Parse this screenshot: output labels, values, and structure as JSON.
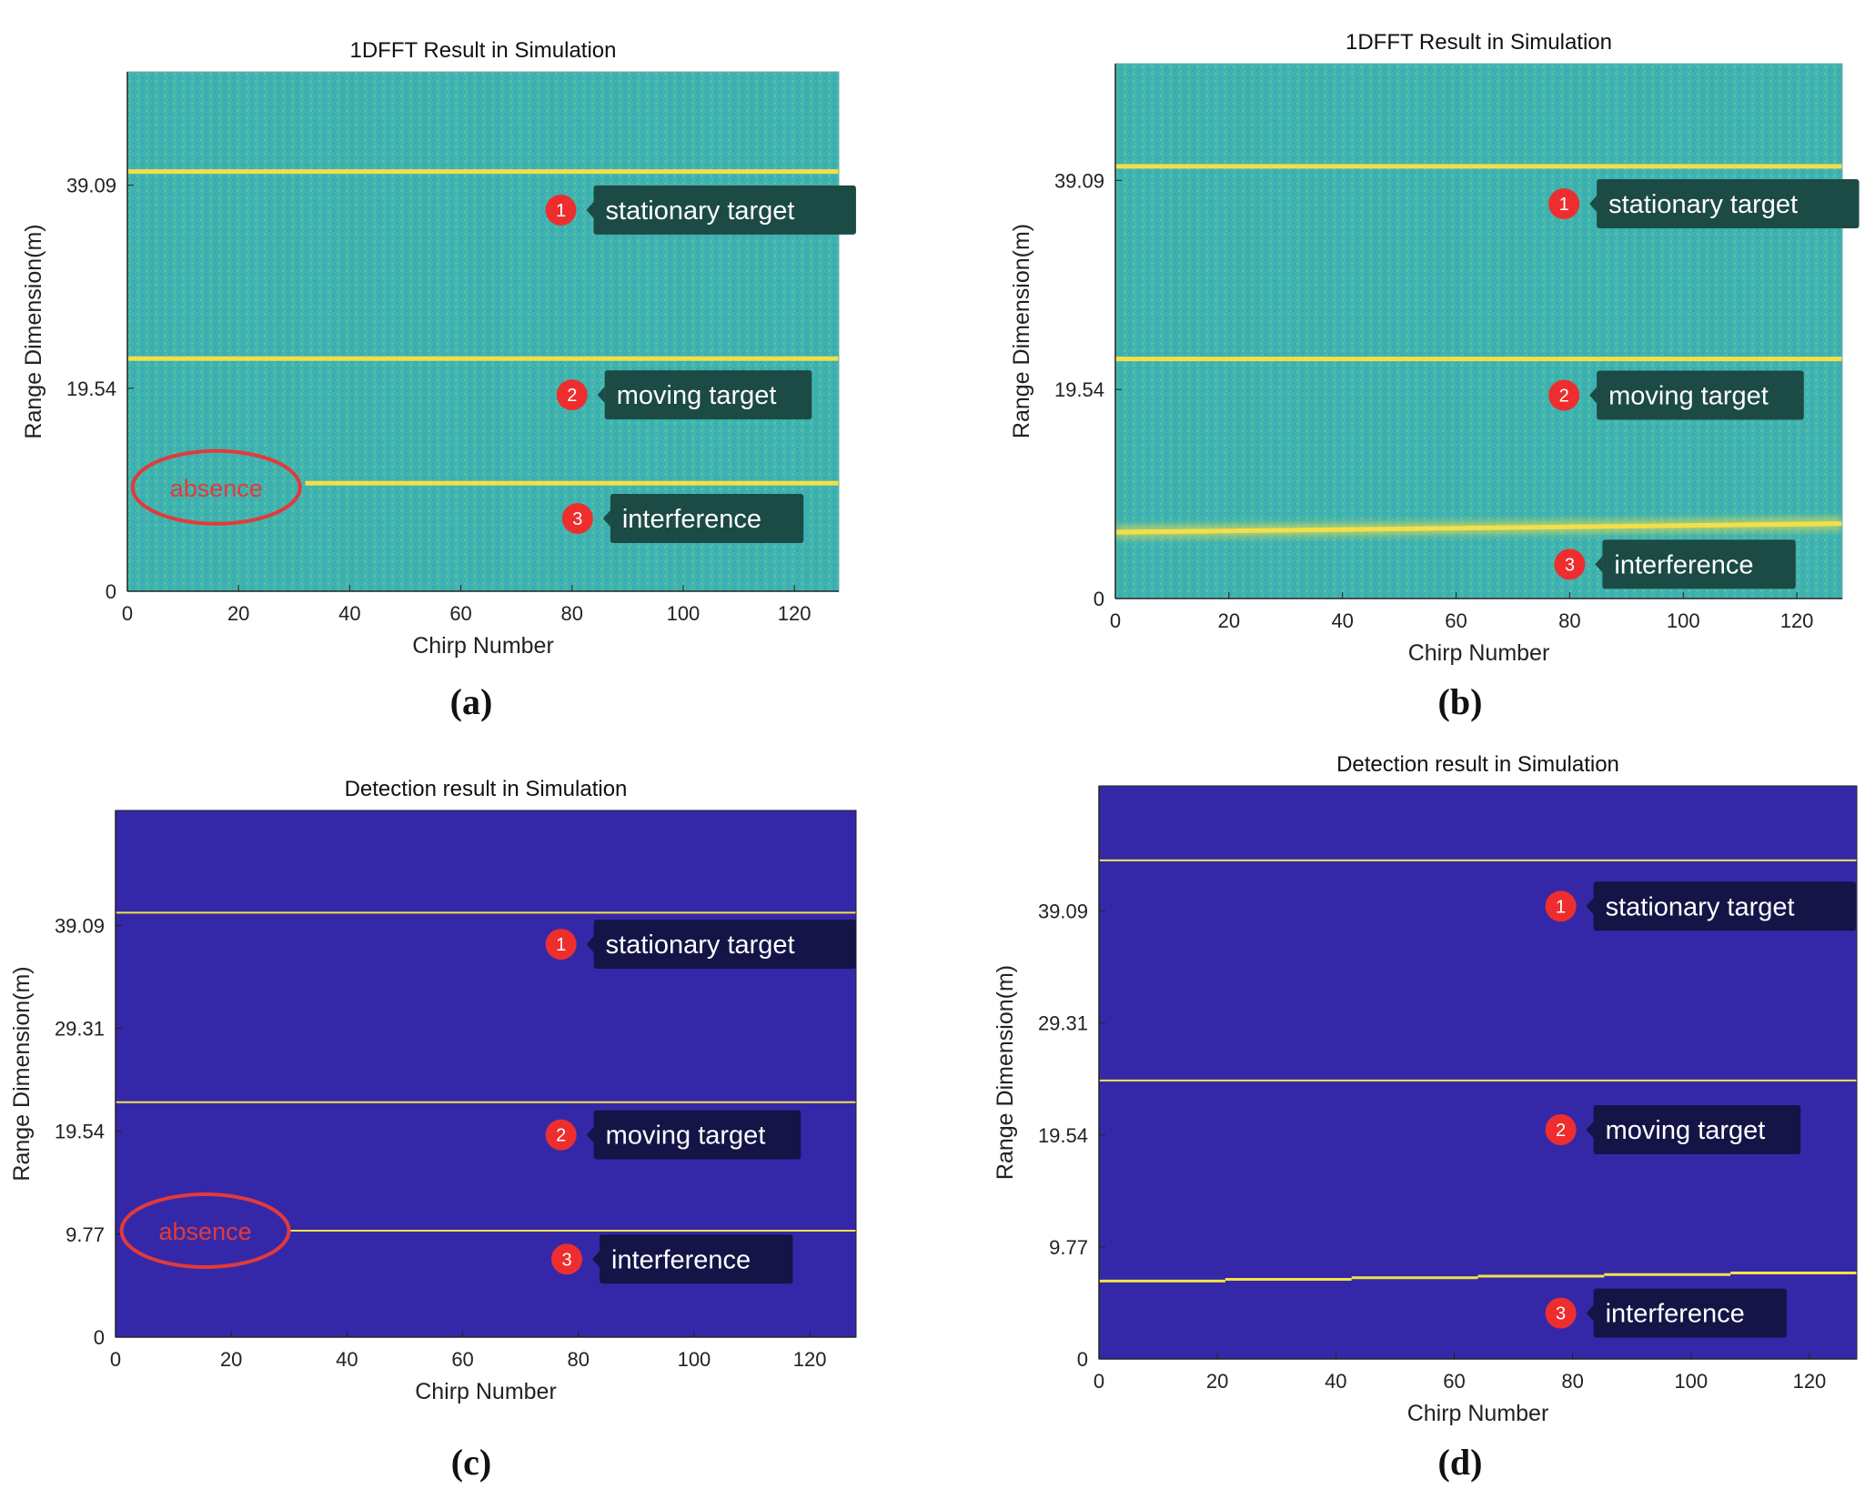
{
  "figure": {
    "captions": [
      "(a)",
      "(b)",
      "(c)",
      "(d)"
    ]
  },
  "chart_data": [
    {
      "id": "a",
      "type": "heatmap",
      "title": "1DFFT Result in Simulation",
      "xlabel": "Chirp Number",
      "ylabel": "Range Dimension(m)",
      "xlim": [
        0,
        128
      ],
      "ylim": [
        0,
        50
      ],
      "xticks": [
        0,
        20,
        40,
        60,
        80,
        100,
        120
      ],
      "yticks": [
        0,
        19.54,
        39.09
      ],
      "ytick_labels": [
        "0",
        "19.54",
        "39.09"
      ],
      "colors": {
        "background": "#3fb3b0",
        "line": "#f3df4a",
        "noise_a": "#6cc898",
        "noise_b": "#2d9fc0"
      },
      "lines": [
        {
          "label": "stationary target",
          "number": "1",
          "y": [
            40.4,
            40.4
          ],
          "x": [
            0,
            128
          ]
        },
        {
          "label": "moving target",
          "number": "2",
          "y": [
            22.4,
            22.4
          ],
          "x": [
            0,
            128
          ]
        },
        {
          "label": "interference",
          "number": "3",
          "y": [
            10.4,
            10.4
          ],
          "x": [
            32,
            128
          ]
        }
      ],
      "annotations": [
        {
          "label": "stationary target",
          "number": "1",
          "at": [
            78,
            36.7
          ]
        },
        {
          "label": "moving target",
          "number": "2",
          "at": [
            80,
            18.9
          ]
        },
        {
          "label": "interference",
          "number": "3",
          "at": [
            81,
            7.0
          ]
        }
      ],
      "absence": {
        "label": "absence",
        "center": [
          16,
          10
        ]
      }
    },
    {
      "id": "b",
      "type": "heatmap",
      "title": "1DFFT Result in Simulation",
      "xlabel": "Chirp Number",
      "ylabel": "Range Dimension(m)",
      "xlim": [
        0,
        128
      ],
      "ylim": [
        0,
        50
      ],
      "xticks": [
        0,
        20,
        40,
        60,
        80,
        100,
        120
      ],
      "yticks": [
        0,
        19.54,
        39.09
      ],
      "ytick_labels": [
        "0",
        "19.54",
        "39.09"
      ],
      "colors": {
        "background": "#3fb3b0",
        "line": "#f3df4a",
        "noise_a": "#6cc898",
        "noise_b": "#2d9fc0"
      },
      "lines": [
        {
          "label": "stationary target",
          "number": "1",
          "y": [
            40.4,
            40.4
          ],
          "x": [
            0,
            128
          ]
        },
        {
          "label": "moving target",
          "number": "2",
          "y": [
            22.4,
            22.4
          ],
          "x": [
            0,
            128
          ]
        },
        {
          "label": "interference",
          "number": "3",
          "y": [
            6.2,
            7.0
          ],
          "x": [
            0,
            128
          ]
        }
      ],
      "annotations": [
        {
          "label": "stationary target",
          "number": "1",
          "at": [
            79,
            36.9
          ]
        },
        {
          "label": "moving target",
          "number": "2",
          "at": [
            79,
            19.0
          ]
        },
        {
          "label": "interference",
          "number": "3",
          "at": [
            80,
            3.2
          ]
        }
      ],
      "absence": null
    },
    {
      "id": "c",
      "type": "heatmap",
      "title": "Detection result in Simulation",
      "xlabel": "Chirp Number",
      "ylabel": "Range Dimension(m)",
      "xlim": [
        0,
        128
      ],
      "ylim": [
        0,
        50
      ],
      "xticks": [
        0,
        20,
        40,
        60,
        80,
        100,
        120
      ],
      "yticks": [
        0,
        9.77,
        19.54,
        29.31,
        39.09
      ],
      "ytick_labels": [
        "0",
        "9.77",
        "19.54",
        "29.31",
        "39.09"
      ],
      "colors": {
        "background": "#3528a8",
        "line": "#f3e34a"
      },
      "lines": [
        {
          "label": "stationary target",
          "number": "1",
          "y": [
            40.3,
            40.3
          ],
          "x": [
            0,
            128
          ]
        },
        {
          "label": "moving target",
          "number": "2",
          "y": [
            22.3,
            22.3
          ],
          "x": [
            0,
            128
          ]
        },
        {
          "label": "interference",
          "number": "3",
          "y": [
            10.1,
            10.1
          ],
          "x": [
            30,
            128
          ]
        }
      ],
      "annotations": [
        {
          "label": "stationary target",
          "number": "1",
          "at": [
            77,
            37.3
          ]
        },
        {
          "label": "moving target",
          "number": "2",
          "at": [
            77,
            19.2
          ]
        },
        {
          "label": "interference",
          "number": "3",
          "at": [
            78,
            7.4
          ]
        }
      ],
      "absence": {
        "label": "absence",
        "center": [
          15.5,
          10.1
        ]
      }
    },
    {
      "id": "d",
      "type": "heatmap",
      "title": "Detection result in Simulation",
      "xlabel": "Chirp Number",
      "ylabel": "Range Dimension(m)",
      "xlim": [
        0,
        128
      ],
      "ylim": [
        0,
        50
      ],
      "xticks": [
        0,
        20,
        40,
        60,
        80,
        100,
        120
      ],
      "yticks": [
        0,
        9.77,
        19.54,
        29.31,
        39.09
      ],
      "ytick_labels": [
        "0",
        "9.77",
        "19.54",
        "29.31",
        "39.09"
      ],
      "colors": {
        "background": "#3528a8",
        "line": "#f3e34a"
      },
      "lines": [
        {
          "label": "stationary target",
          "number": "1",
          "y": [
            43.5,
            43.5
          ],
          "x": [
            0,
            128
          ]
        },
        {
          "label": "moving target",
          "number": "2",
          "y": [
            24.3,
            24.3
          ],
          "x": [
            0,
            128
          ]
        },
        {
          "label": "interference",
          "number": "3",
          "y": [
            6.8,
            7.5
          ],
          "x": [
            0,
            128
          ],
          "steps": 6
        }
      ],
      "annotations": [
        {
          "label": "stationary target",
          "number": "1",
          "at": [
            78,
            39.5
          ]
        },
        {
          "label": "moving target",
          "number": "2",
          "at": [
            78,
            20.0
          ]
        },
        {
          "label": "interference",
          "number": "3",
          "at": [
            78,
            4.0
          ]
        }
      ],
      "absence": null
    }
  ]
}
